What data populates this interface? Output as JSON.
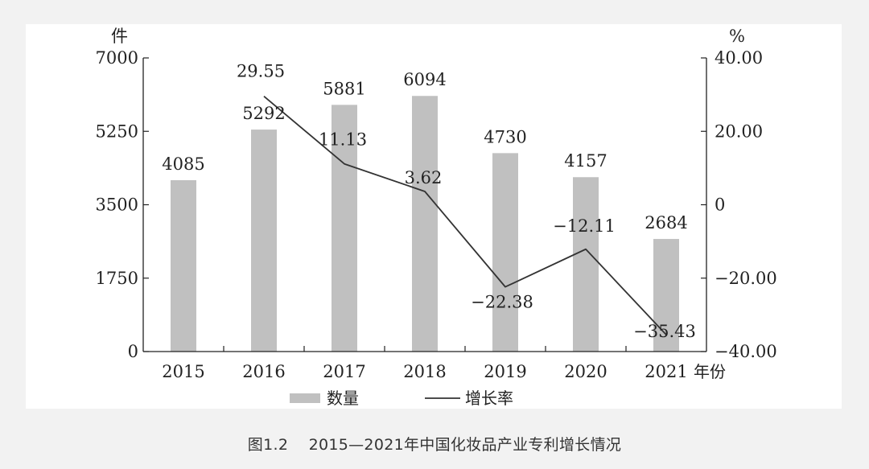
{
  "caption": {
    "number": "图1.2",
    "text": "2015—2021年中国化妆品产业专利增长情况"
  },
  "chart_data": {
    "type": "bar",
    "categories": [
      "2015",
      "2016",
      "2017",
      "2018",
      "2019",
      "2020",
      "2021"
    ],
    "series": [
      {
        "name": "数量",
        "type": "bar",
        "axis": "left",
        "values": [
          4085,
          5292,
          5881,
          6094,
          4730,
          4157,
          2684
        ],
        "labels": [
          "4085",
          "5292",
          "5881",
          "6094",
          "4730",
          "4157",
          "2684"
        ],
        "color": "#c0c0c0"
      },
      {
        "name": "增长率",
        "type": "line",
        "axis": "right",
        "values": [
          null,
          29.55,
          11.13,
          3.62,
          -22.38,
          -12.11,
          -35.43
        ],
        "labels": [
          "",
          "29.55",
          "11.13",
          "3.62",
          "−22.38",
          "−12.11",
          "−35.43"
        ],
        "color": "#333333"
      }
    ],
    "left_axis": {
      "unit": "件",
      "range": [
        0,
        7000
      ],
      "ticks": [
        0,
        1750,
        3500,
        5250,
        7000
      ],
      "tick_labels": [
        "0",
        "1750",
        "3500",
        "5250",
        "7000"
      ]
    },
    "right_axis": {
      "unit": "%",
      "range": [
        -40,
        40
      ],
      "ticks": [
        -40,
        -20,
        0,
        20,
        40
      ],
      "tick_labels": [
        "−40.00",
        "−20.00",
        "0",
        "20.00",
        "40.00"
      ]
    },
    "x_axis": {
      "unit": "年份"
    },
    "grid": false,
    "legend": "bottom-center"
  }
}
